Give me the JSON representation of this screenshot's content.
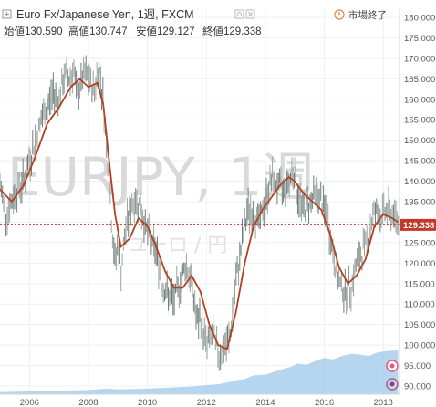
{
  "header": {
    "symbol_title": "Euro Fx/Japanese Yen, 1週, FXCM",
    "ohlc": [
      {
        "label": "始値",
        "value": "130.590"
      },
      {
        "label": "高値",
        "value": "130.747"
      },
      {
        "label": "安値",
        "value": "129.127"
      },
      {
        "label": "終値",
        "value": "129.338"
      }
    ],
    "market_status": "市場終了"
  },
  "watermark": {
    "main": "EURJPY, 1週",
    "sub": "ユーロ / 円"
  },
  "colors": {
    "candle_wick": "#8a8a8a",
    "ma_line": "#b3401f",
    "volume_fill": "#9ec8ea",
    "last_price_line": "#c0392b",
    "last_price_tag": "#c0392b"
  },
  "chart_data": {
    "type": "line",
    "title": "Euro Fx/Japanese Yen, 1週, FXCM",
    "xlabel": "",
    "ylabel": "",
    "x_ticks": [
      "2006",
      "2008",
      "2010",
      "2012",
      "2014",
      "2016",
      "2018"
    ],
    "y_ticks": [
      "90.000",
      "95.000",
      "100.000",
      "105.000",
      "110.000",
      "115.000",
      "120.000",
      "125.000",
      "130.000",
      "135.000",
      "140.000",
      "145.000",
      "150.000",
      "155.000",
      "160.000",
      "165.000",
      "170.000",
      "175.000",
      "180.000"
    ],
    "ylim": [
      88,
      182
    ],
    "xlim": [
      2005.0,
      2018.55
    ],
    "last_price": 129.338,
    "last_price_label": "129.338",
    "grid": true,
    "series": [
      {
        "kind": "price",
        "x": [
          2005.0,
          2005.2,
          2005.4,
          2005.6,
          2005.8,
          2006.0,
          2006.2,
          2006.4,
          2006.6,
          2006.8,
          2007.0,
          2007.2,
          2007.4,
          2007.5,
          2007.6,
          2007.7,
          2007.8,
          2007.9,
          2008.0,
          2008.2,
          2008.35,
          2008.5,
          2008.6,
          2008.7,
          2008.8,
          2008.9,
          2009.0,
          2009.1,
          2009.3,
          2009.5,
          2009.7,
          2009.9,
          2010.1,
          2010.3,
          2010.5,
          2010.7,
          2010.9,
          2011.1,
          2011.3,
          2011.5,
          2011.7,
          2011.8,
          2012.0,
          2012.2,
          2012.4,
          2012.6,
          2012.8,
          2013.0,
          2013.2,
          2013.4,
          2013.6,
          2013.8,
          2014.0,
          2014.2,
          2014.4,
          2014.6,
          2014.8,
          2014.95,
          2015.1,
          2015.3,
          2015.5,
          2015.7,
          2015.9,
          2016.1,
          2016.3,
          2016.5,
          2016.7,
          2016.9,
          2017.1,
          2017.3,
          2017.5,
          2017.7,
          2017.9,
          2018.1,
          2018.3,
          2018.5
        ],
        "values": [
          139,
          132,
          135,
          138,
          140,
          145,
          150,
          155,
          158,
          162,
          160,
          166,
          165,
          168,
          160,
          163,
          165,
          166,
          165,
          162,
          168,
          160,
          150,
          140,
          128,
          120,
          125,
          118,
          130,
          135,
          135,
          130,
          125,
          123,
          115,
          112,
          111,
          115,
          120,
          115,
          105,
          107,
          100,
          103,
          98,
          99,
          102,
          115,
          125,
          133,
          132,
          130,
          135,
          141,
          139,
          138,
          140,
          143,
          136,
          133,
          135,
          137,
          135,
          131,
          122,
          115,
          113,
          114,
          120,
          123,
          127,
          133,
          131,
          133,
          132,
          130
        ]
      },
      {
        "kind": "moving_average",
        "x": [
          2005.0,
          2005.4,
          2005.8,
          2006.2,
          2006.6,
          2007.0,
          2007.4,
          2007.7,
          2008.0,
          2008.3,
          2008.5,
          2008.7,
          2008.9,
          2009.1,
          2009.4,
          2009.7,
          2010.0,
          2010.3,
          2010.6,
          2010.9,
          2011.2,
          2011.5,
          2011.8,
          2012.1,
          2012.4,
          2012.7,
          2013.0,
          2013.3,
          2013.6,
          2013.9,
          2014.2,
          2014.5,
          2014.8,
          2015.0,
          2015.3,
          2015.6,
          2015.9,
          2016.2,
          2016.5,
          2016.8,
          2017.1,
          2017.4,
          2017.7,
          2018.0,
          2018.3,
          2018.5
        ],
        "values": [
          138,
          135,
          139,
          146,
          154,
          158,
          163,
          165,
          163,
          164,
          159,
          145,
          132,
          124,
          126,
          131,
          129,
          124,
          118,
          114,
          114,
          117,
          113,
          105,
          100,
          99,
          108,
          120,
          129,
          133,
          136,
          139,
          141,
          140,
          137,
          135,
          133,
          127,
          119,
          115,
          117,
          121,
          129,
          132,
          131,
          130
        ]
      },
      {
        "kind": "volume_area",
        "x": [
          2005.0,
          2006.0,
          2007.0,
          2008.0,
          2008.6,
          2009.0,
          2010.0,
          2010.5,
          2011.0,
          2011.5,
          2012.0,
          2012.5,
          2013.0,
          2013.3,
          2013.6,
          2014.0,
          2014.5,
          2014.9,
          2015.1,
          2015.4,
          2015.7,
          2016.0,
          2016.3,
          2016.6,
          2016.9,
          2017.2,
          2017.5,
          2017.8,
          2018.1,
          2018.5
        ],
        "values": [
          0.03,
          0.04,
          0.05,
          0.06,
          0.08,
          0.07,
          0.08,
          0.09,
          0.1,
          0.11,
          0.13,
          0.15,
          0.2,
          0.22,
          0.27,
          0.28,
          0.35,
          0.4,
          0.44,
          0.42,
          0.48,
          0.52,
          0.5,
          0.55,
          0.58,
          0.57,
          0.55,
          0.6,
          0.62,
          0.63
        ]
      }
    ]
  }
}
